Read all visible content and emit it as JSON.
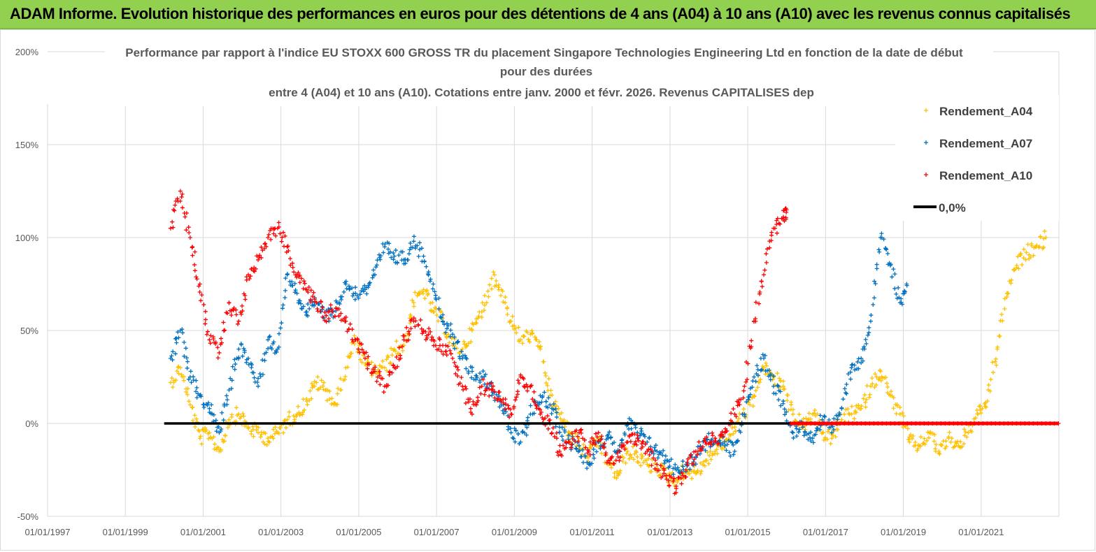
{
  "header": {
    "banner_text": "ADAM Informe. Evolution historique des performances en euros pour des détentions de 4 ans (A04) à 10 ans (A10) avec les revenus connus capitalisés"
  },
  "colors": {
    "banner_bg": "#92d050",
    "A04": "#ffc000",
    "A07": "#0070c0",
    "A10": "#ff0000",
    "zero_line": "#000000"
  },
  "chart_data": {
    "type": "scatter",
    "title_lines": [
      "Performance par rapport à l'indice EU STOXX 600 GROSS TR  du placement Singapore Technologies Engineering Ltd en fonction de la date de début",
      "pour des durées",
      "entre 4 (A04) et 10 ans (A10). Cotations entre janv. 2000 et févr. 2026. Revenus CAPITALISES dep"
    ],
    "x_axis": {
      "type": "date",
      "range": [
        "1997-01-01",
        "2023-01-01"
      ],
      "tick_labels": [
        "01/01/1997",
        "01/01/1999",
        "01/01/2001",
        "01/01/2003",
        "01/01/2005",
        "01/01/2007",
        "01/01/2009",
        "01/01/2011",
        "01/01/2013",
        "01/01/2015",
        "01/01/2017",
        "01/01/2019",
        "01/01/2021"
      ]
    },
    "y_axis": {
      "range": [
        -0.5,
        2.0
      ],
      "tick_values": [
        -0.5,
        0,
        0.5,
        1.0,
        1.5,
        2.0
      ],
      "tick_labels": [
        "-50%",
        "0%",
        "50%",
        "100%",
        "150%",
        "200%"
      ]
    },
    "grid": "both",
    "legend_position": "top-right",
    "marker": "+",
    "series": [
      {
        "name": "Rendement_A04",
        "color": "#ffc000",
        "points": [
          [
            "2000-03-01",
            0.22
          ],
          [
            "2000-06-01",
            0.3
          ],
          [
            "2000-09-01",
            0.1
          ],
          [
            "2000-12-01",
            -0.08
          ],
          [
            "2001-03-01",
            -0.05
          ],
          [
            "2001-06-01",
            -0.15
          ],
          [
            "2001-09-01",
            0.02
          ],
          [
            "2001-12-01",
            0.05
          ],
          [
            "2002-03-01",
            -0.02
          ],
          [
            "2002-06-01",
            -0.05
          ],
          [
            "2002-09-01",
            -0.08
          ],
          [
            "2002-12-01",
            -0.05
          ],
          [
            "2003-03-01",
            0.02
          ],
          [
            "2003-06-01",
            0.05
          ],
          [
            "2003-09-01",
            0.12
          ],
          [
            "2003-12-01",
            0.22
          ],
          [
            "2004-03-01",
            0.18
          ],
          [
            "2004-06-01",
            0.1
          ],
          [
            "2004-09-01",
            0.3
          ],
          [
            "2004-12-01",
            0.45
          ],
          [
            "2005-03-01",
            0.32
          ],
          [
            "2005-06-01",
            0.28
          ],
          [
            "2005-09-01",
            0.3
          ],
          [
            "2005-12-01",
            0.4
          ],
          [
            "2006-03-01",
            0.42
          ],
          [
            "2006-06-01",
            0.65
          ],
          [
            "2006-09-01",
            0.72
          ],
          [
            "2006-12-01",
            0.6
          ],
          [
            "2007-03-01",
            0.55
          ],
          [
            "2007-06-01",
            0.42
          ],
          [
            "2007-09-01",
            0.4
          ],
          [
            "2007-12-01",
            0.5
          ],
          [
            "2008-03-01",
            0.6
          ],
          [
            "2008-06-01",
            0.78
          ],
          [
            "2008-09-01",
            0.72
          ],
          [
            "2008-12-01",
            0.55
          ],
          [
            "2009-03-01",
            0.45
          ],
          [
            "2009-06-01",
            0.48
          ],
          [
            "2009-09-01",
            0.4
          ],
          [
            "2009-12-01",
            0.15
          ],
          [
            "2010-03-01",
            0.05
          ],
          [
            "2010-06-01",
            -0.05
          ],
          [
            "2010-09-01",
            -0.12
          ],
          [
            "2010-12-01",
            -0.18
          ],
          [
            "2011-03-01",
            -0.08
          ],
          [
            "2011-06-01",
            -0.22
          ],
          [
            "2011-09-01",
            -0.28
          ],
          [
            "2011-12-01",
            -0.15
          ],
          [
            "2012-03-01",
            -0.18
          ],
          [
            "2012-06-01",
            -0.22
          ],
          [
            "2012-09-01",
            -0.24
          ],
          [
            "2012-12-01",
            -0.28
          ],
          [
            "2013-03-01",
            -0.3
          ],
          [
            "2013-06-01",
            -0.25
          ],
          [
            "2013-09-01",
            -0.27
          ],
          [
            "2013-12-01",
            -0.2
          ],
          [
            "2014-03-01",
            -0.15
          ],
          [
            "2014-06-01",
            -0.1
          ],
          [
            "2014-09-01",
            -0.02
          ],
          [
            "2014-12-01",
            0.05
          ],
          [
            "2015-03-01",
            0.15
          ],
          [
            "2015-06-01",
            0.3
          ],
          [
            "2015-09-01",
            0.25
          ],
          [
            "2015-12-01",
            0.2
          ],
          [
            "2016-03-01",
            0.05
          ],
          [
            "2016-06-01",
            -0.02
          ],
          [
            "2016-09-01",
            0.05
          ],
          [
            "2016-12-01",
            -0.05
          ],
          [
            "2017-03-01",
            -0.08
          ],
          [
            "2017-06-01",
            0.02
          ],
          [
            "2017-09-01",
            0.05
          ],
          [
            "2017-12-01",
            0.08
          ],
          [
            "2018-03-01",
            0.2
          ],
          [
            "2018-06-01",
            0.28
          ],
          [
            "2018-09-01",
            0.15
          ],
          [
            "2018-12-01",
            0.05
          ],
          [
            "2019-03-01",
            -0.1
          ],
          [
            "2019-06-01",
            -0.12
          ],
          [
            "2019-09-01",
            -0.05
          ],
          [
            "2019-12-01",
            -0.15
          ],
          [
            "2020-03-01",
            -0.08
          ],
          [
            "2020-06-01",
            -0.12
          ],
          [
            "2020-09-01",
            -0.05
          ],
          [
            "2020-12-01",
            0.05
          ],
          [
            "2021-03-01",
            0.12
          ],
          [
            "2021-06-01",
            0.4
          ],
          [
            "2021-09-01",
            0.7
          ],
          [
            "2021-12-01",
            0.85
          ],
          [
            "2022-03-01",
            0.92
          ],
          [
            "2022-06-01",
            0.95
          ],
          [
            "2022-09-01",
            1.0
          ]
        ]
      },
      {
        "name": "Rendement_A07",
        "color": "#0070c0",
        "points": [
          [
            "2000-03-01",
            0.35
          ],
          [
            "2000-06-01",
            0.5
          ],
          [
            "2000-09-01",
            0.25
          ],
          [
            "2000-12-01",
            0.15
          ],
          [
            "2001-03-01",
            0.08
          ],
          [
            "2001-06-01",
            -0.05
          ],
          [
            "2001-09-01",
            0.18
          ],
          [
            "2001-12-01",
            0.4
          ],
          [
            "2002-03-01",
            0.35
          ],
          [
            "2002-06-01",
            0.2
          ],
          [
            "2002-09-01",
            0.45
          ],
          [
            "2002-12-01",
            0.4
          ],
          [
            "2003-03-01",
            0.8
          ],
          [
            "2003-06-01",
            0.7
          ],
          [
            "2003-09-01",
            0.6
          ],
          [
            "2003-12-01",
            0.65
          ],
          [
            "2004-03-01",
            0.58
          ],
          [
            "2004-06-01",
            0.62
          ],
          [
            "2004-09-01",
            0.75
          ],
          [
            "2004-12-01",
            0.7
          ],
          [
            "2005-03-01",
            0.72
          ],
          [
            "2005-06-01",
            0.8
          ],
          [
            "2005-09-01",
            0.95
          ],
          [
            "2005-12-01",
            0.9
          ],
          [
            "2006-03-01",
            0.88
          ],
          [
            "2006-06-01",
            0.98
          ],
          [
            "2006-09-01",
            0.9
          ],
          [
            "2006-12-01",
            0.75
          ],
          [
            "2007-03-01",
            0.55
          ],
          [
            "2007-06-01",
            0.48
          ],
          [
            "2007-09-01",
            0.35
          ],
          [
            "2007-12-01",
            0.28
          ],
          [
            "2008-03-01",
            0.25
          ],
          [
            "2008-06-01",
            0.2
          ],
          [
            "2008-09-01",
            0.1
          ],
          [
            "2008-12-01",
            -0.05
          ],
          [
            "2009-03-01",
            -0.1
          ],
          [
            "2009-06-01",
            0.05
          ],
          [
            "2009-09-01",
            0.15
          ],
          [
            "2009-12-01",
            0.1
          ],
          [
            "2010-03-01",
            -0.02
          ],
          [
            "2010-06-01",
            -0.1
          ],
          [
            "2010-09-01",
            -0.12
          ],
          [
            "2010-12-01",
            -0.22
          ],
          [
            "2011-03-01",
            -0.1
          ],
          [
            "2011-06-01",
            -0.08
          ],
          [
            "2011-09-01",
            -0.15
          ],
          [
            "2011-12-01",
            0.0
          ],
          [
            "2012-03-01",
            -0.05
          ],
          [
            "2012-06-01",
            -0.1
          ],
          [
            "2012-09-01",
            -0.15
          ],
          [
            "2012-12-01",
            -0.2
          ],
          [
            "2013-03-01",
            -0.25
          ],
          [
            "2013-06-01",
            -0.22
          ],
          [
            "2013-09-01",
            -0.18
          ],
          [
            "2013-12-01",
            -0.1
          ],
          [
            "2014-03-01",
            -0.08
          ],
          [
            "2014-06-01",
            -0.12
          ],
          [
            "2014-09-01",
            -0.15
          ],
          [
            "2014-12-01",
            0.05
          ],
          [
            "2015-03-01",
            0.25
          ],
          [
            "2015-06-01",
            0.35
          ],
          [
            "2015-09-01",
            0.2
          ],
          [
            "2015-12-01",
            0.12
          ],
          [
            "2016-03-01",
            -0.05
          ],
          [
            "2016-06-01",
            -0.02
          ],
          [
            "2016-09-01",
            -0.08
          ],
          [
            "2016-12-01",
            0.02
          ],
          [
            "2017-03-01",
            -0.05
          ],
          [
            "2017-06-01",
            0.08
          ],
          [
            "2017-09-01",
            0.3
          ],
          [
            "2017-12-01",
            0.35
          ],
          [
            "2018-03-01",
            0.55
          ],
          [
            "2018-06-01",
            1.0
          ],
          [
            "2018-09-01",
            0.85
          ],
          [
            "2018-12-01",
            0.65
          ],
          [
            "2019-02-01",
            0.75
          ]
        ]
      },
      {
        "name": "Rendement_A10",
        "color": "#ff0000",
        "points": [
          [
            "2000-03-01",
            1.05
          ],
          [
            "2000-06-01",
            1.25
          ],
          [
            "2000-09-01",
            1.0
          ],
          [
            "2000-12-01",
            0.75
          ],
          [
            "2001-03-01",
            0.45
          ],
          [
            "2001-06-01",
            0.38
          ],
          [
            "2001-09-01",
            0.65
          ],
          [
            "2001-12-01",
            0.55
          ],
          [
            "2002-03-01",
            0.8
          ],
          [
            "2002-06-01",
            0.88
          ],
          [
            "2002-09-01",
            1.0
          ],
          [
            "2002-12-01",
            1.05
          ],
          [
            "2003-03-01",
            0.95
          ],
          [
            "2003-06-01",
            0.8
          ],
          [
            "2003-09-01",
            0.72
          ],
          [
            "2003-12-01",
            0.65
          ],
          [
            "2004-03-01",
            0.58
          ],
          [
            "2004-06-01",
            0.62
          ],
          [
            "2004-09-01",
            0.55
          ],
          [
            "2004-12-01",
            0.45
          ],
          [
            "2005-03-01",
            0.35
          ],
          [
            "2005-06-01",
            0.28
          ],
          [
            "2005-09-01",
            0.2
          ],
          [
            "2005-12-01",
            0.3
          ],
          [
            "2006-03-01",
            0.45
          ],
          [
            "2006-06-01",
            0.55
          ],
          [
            "2006-09-01",
            0.5
          ],
          [
            "2006-12-01",
            0.45
          ],
          [
            "2007-03-01",
            0.42
          ],
          [
            "2007-06-01",
            0.35
          ],
          [
            "2007-09-01",
            0.2
          ],
          [
            "2007-12-01",
            0.05
          ],
          [
            "2008-03-01",
            0.2
          ],
          [
            "2008-06-01",
            0.18
          ],
          [
            "2008-09-01",
            0.12
          ],
          [
            "2008-12-01",
            0.05
          ],
          [
            "2009-03-01",
            0.25
          ],
          [
            "2009-06-01",
            0.2
          ],
          [
            "2009-09-01",
            0.05
          ],
          [
            "2009-12-01",
            0.0
          ],
          [
            "2010-03-01",
            -0.15
          ],
          [
            "2010-06-01",
            -0.1
          ],
          [
            "2010-09-01",
            -0.05
          ],
          [
            "2010-12-01",
            -0.15
          ],
          [
            "2011-03-01",
            -0.05
          ],
          [
            "2011-06-01",
            -0.2
          ],
          [
            "2011-09-01",
            -0.18
          ],
          [
            "2011-12-01",
            -0.1
          ],
          [
            "2012-03-01",
            -0.08
          ],
          [
            "2012-06-01",
            -0.15
          ],
          [
            "2012-09-01",
            -0.22
          ],
          [
            "2012-12-01",
            -0.3
          ],
          [
            "2013-03-01",
            -0.35
          ],
          [
            "2013-06-01",
            -0.25
          ],
          [
            "2013-09-01",
            -0.15
          ],
          [
            "2013-12-01",
            -0.1
          ],
          [
            "2014-03-01",
            -0.08
          ],
          [
            "2014-06-01",
            -0.05
          ],
          [
            "2014-09-01",
            0.05
          ],
          [
            "2014-12-01",
            0.2
          ],
          [
            "2015-03-01",
            0.55
          ],
          [
            "2015-06-01",
            0.8
          ],
          [
            "2015-09-01",
            1.05
          ],
          [
            "2015-12-01",
            1.1
          ],
          [
            "2016-01-01",
            1.15
          ]
        ],
        "flat_after": {
          "from": "2016-02-01",
          "to": "2022-12-31",
          "value": 0.0
        }
      }
    ],
    "reference_line": {
      "name": "0,0%",
      "color": "#000000",
      "value": 0.0,
      "from": "2000-01-01",
      "to": "2016-02-01"
    },
    "legend": [
      "Rendement_A04",
      "Rendement_A07",
      "Rendement_A10",
      "0,0%"
    ]
  }
}
